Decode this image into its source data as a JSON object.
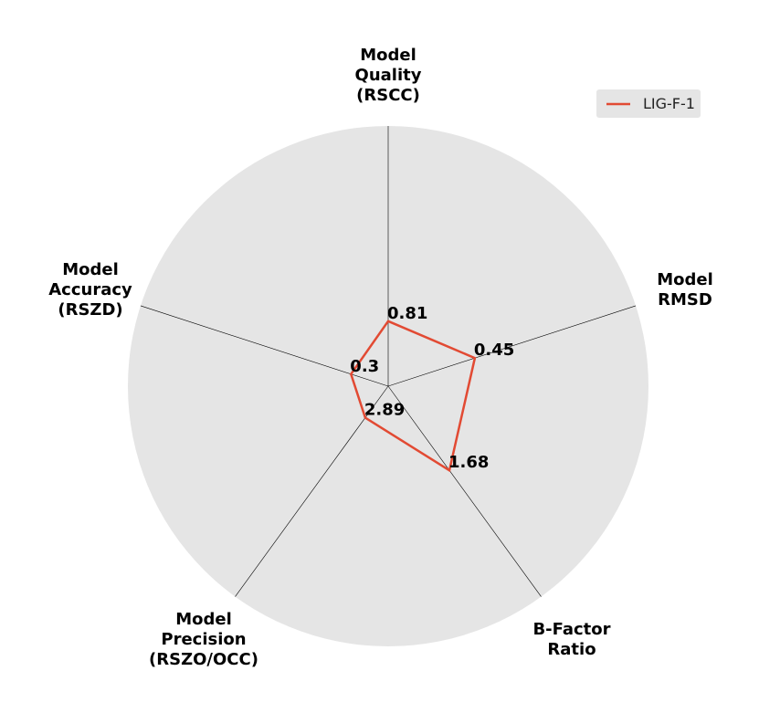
{
  "chart_data": {
    "type": "radar",
    "axes": [
      {
        "label_lines": [
          "Model",
          "Quality",
          "(RSCC)"
        ]
      },
      {
        "label_lines": [
          "Model",
          "RMSD"
        ]
      },
      {
        "label_lines": [
          "B-Factor",
          "Ratio"
        ]
      },
      {
        "label_lines": [
          "Model",
          "Precision",
          "(RSZO/OCC)"
        ]
      },
      {
        "label_lines": [
          "Model",
          "Accuracy",
          "(RSZD)"
        ]
      }
    ],
    "series": [
      {
        "name": "LIG-F-1",
        "color": "#e24a33",
        "values": [
          0.81,
          0.45,
          1.68,
          2.89,
          0.3
        ],
        "value_labels": [
          "0.81",
          "0.45",
          "1.68",
          "2.89",
          "0.3"
        ],
        "normalized_radius": [
          0.25,
          0.35,
          0.4,
          0.15,
          0.15
        ]
      }
    ],
    "background_color": "#e5e5e5",
    "spoke_color": "#000000",
    "legend_placement": "top-right",
    "grid": false
  }
}
